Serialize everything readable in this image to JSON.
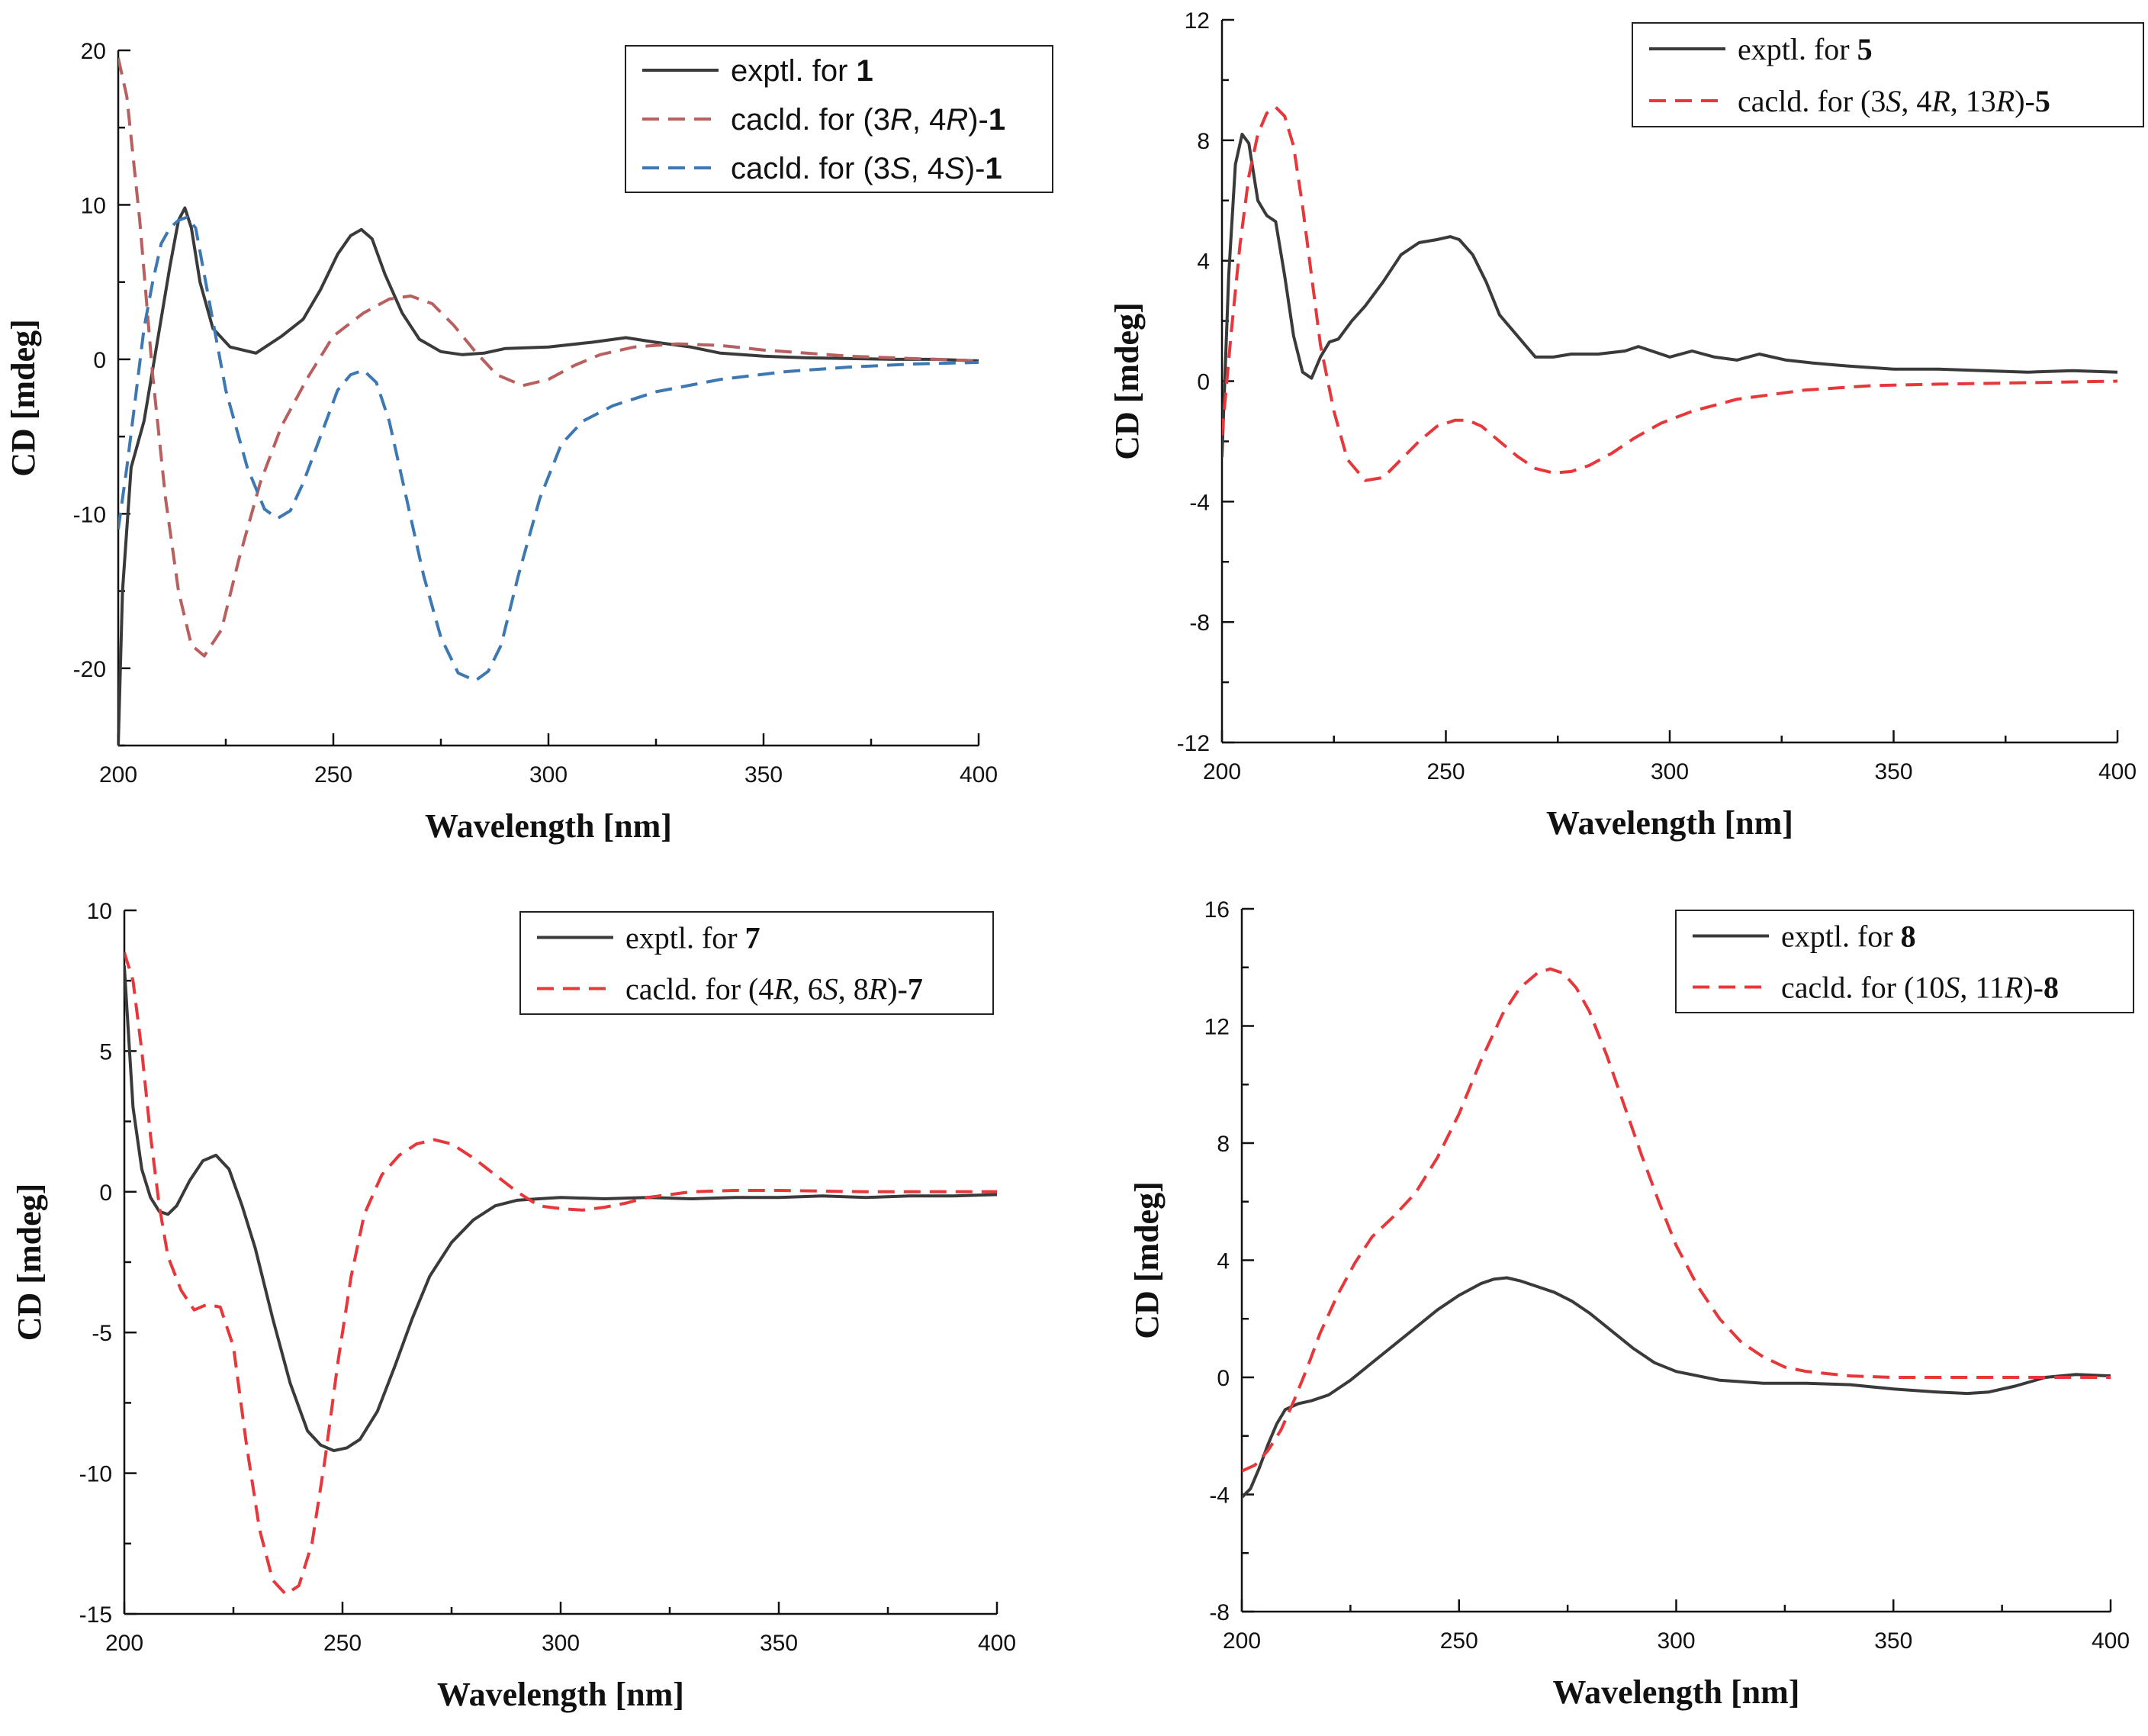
{
  "chart_data": [
    {
      "type": "line",
      "xlabel": "Wavelength [nm]",
      "ylabel": "CD [mdeg]",
      "xlim": [
        200,
        400
      ],
      "ylim": [
        -25,
        20
      ],
      "xticks": [
        "200",
        "250",
        "300",
        "350",
        "400"
      ],
      "yticks": [
        "20",
        "10",
        "0",
        "-10",
        "-20"
      ],
      "yticks_values": [
        20,
        10,
        0,
        -10,
        -20
      ],
      "legend_position": "top-right",
      "legend_font": "sans",
      "series": [
        {
          "name": "exptl. for 1",
          "legend": [
            {
              "t": "exptl. for "
            },
            {
              "t": "1",
              "b": true
            }
          ],
          "color": "#3a3a3a",
          "dash": false,
          "x": [
            200,
            201,
            203,
            206,
            209,
            212,
            214,
            215.5,
            217,
            219,
            222,
            226,
            232,
            238,
            243,
            247,
            251,
            254,
            256.5,
            259,
            262,
            266,
            270,
            275,
            280,
            285,
            290,
            300,
            310,
            318,
            325,
            333,
            340,
            350,
            360,
            370,
            380,
            390,
            400
          ],
          "y": [
            -25,
            -15,
            -7,
            -4,
            1,
            6,
            9,
            9.8,
            8.5,
            5,
            2,
            0.8,
            0.4,
            1.5,
            2.6,
            4.5,
            6.8,
            8,
            8.4,
            7.8,
            5.5,
            3,
            1.3,
            0.5,
            0.3,
            0.4,
            0.7,
            0.8,
            1.1,
            1.4,
            1.1,
            0.8,
            0.4,
            0.2,
            0.1,
            0.05,
            0,
            0,
            -0.1
          ]
        },
        {
          "name": "cacld. for (3R, 4R)-1",
          "legend": [
            {
              "t": "cacld. for ("
            },
            {
              "t": "3"
            },
            {
              "t": "R",
              "i": true
            },
            {
              "t": ", 4"
            },
            {
              "t": "R",
              "i": true
            },
            {
              "t": ")-"
            },
            {
              "t": "1",
              "b": true
            }
          ],
          "color": "#b86060",
          "dash": true,
          "x": [
            200,
            202,
            205,
            208,
            211,
            214,
            217,
            220,
            224,
            228,
            233,
            238,
            244,
            250,
            257,
            263,
            268,
            273,
            278,
            283,
            288,
            294,
            300,
            306,
            312,
            320,
            330,
            340,
            350,
            360,
            370,
            380,
            390,
            400
          ],
          "y": [
            19.5,
            17,
            9,
            -1,
            -9,
            -15,
            -18.5,
            -19.2,
            -17.5,
            -13,
            -8,
            -4.3,
            -1.2,
            1.5,
            3,
            3.9,
            4.1,
            3.6,
            2.2,
            0.5,
            -1,
            -1.7,
            -1.3,
            -0.4,
            0.3,
            0.8,
            1,
            0.9,
            0.6,
            0.4,
            0.2,
            0.1,
            0,
            -0.1
          ]
        },
        {
          "name": "cacld. for (3S, 4S)-1",
          "legend": [
            {
              "t": "cacld. for ("
            },
            {
              "t": "3"
            },
            {
              "t": "S",
              "i": true
            },
            {
              "t": ", 4"
            },
            {
              "t": "S",
              "i": true
            },
            {
              "t": ")-"
            },
            {
              "t": "1",
              "b": true
            }
          ],
          "color": "#3d78b3",
          "dash": true,
          "x": [
            200,
            202,
            204,
            206,
            208,
            210,
            212,
            214,
            216,
            218,
            221,
            225,
            230,
            234,
            237,
            240,
            243,
            247,
            251,
            254,
            257,
            260,
            263,
            267,
            271,
            275,
            279,
            283,
            286,
            289,
            293,
            298,
            303,
            308,
            315,
            325,
            340,
            355,
            370,
            385,
            400
          ],
          "y": [
            -11,
            -7,
            -2.5,
            2,
            5,
            7.5,
            8.5,
            9,
            9.2,
            8.5,
            4,
            -2,
            -7,
            -9.7,
            -10.3,
            -9.8,
            -8,
            -5,
            -2,
            -1,
            -0.7,
            -1.5,
            -4,
            -9,
            -14,
            -18,
            -20.3,
            -20.8,
            -20.2,
            -18.5,
            -14,
            -9,
            -5.5,
            -4,
            -3,
            -2.1,
            -1.3,
            -0.8,
            -0.5,
            -0.3,
            -0.2
          ]
        }
      ]
    },
    {
      "type": "line",
      "xlabel": "Wavelength [nm]",
      "ylabel": "CD [mdeg]",
      "xlim": [
        200,
        400
      ],
      "ylim": [
        -12,
        12
      ],
      "xticks": [
        "200",
        "250",
        "300",
        "350",
        "400"
      ],
      "yticks": [
        "12",
        "8",
        "4",
        "0",
        "-4",
        "-8",
        "-12"
      ],
      "yticks_values": [
        12,
        8,
        4,
        0,
        -4,
        -8,
        -12
      ],
      "legend_position": "top-right",
      "legend_font": "serif",
      "series": [
        {
          "name": "exptl. for 5",
          "legend": [
            {
              "t": "exptl. for "
            },
            {
              "t": "5",
              "b": true
            }
          ],
          "color": "#3a3a3a",
          "dash": false,
          "x": [
            200,
            201.5,
            203,
            204.5,
            206,
            208,
            210,
            212,
            214,
            216,
            218,
            220,
            222,
            224,
            226,
            229,
            232,
            236,
            240,
            244,
            248,
            251,
            253,
            256,
            259,
            262,
            266,
            270,
            274,
            278,
            284,
            290,
            293,
            296,
            300,
            305,
            310,
            315,
            320,
            326,
            332,
            340,
            350,
            360,
            370,
            380,
            390,
            400
          ],
          "y": [
            -2.5,
            3.5,
            7.2,
            8.2,
            7.9,
            6,
            5.5,
            5.3,
            3.5,
            1.5,
            0.3,
            0.1,
            0.8,
            1.3,
            1.4,
            2,
            2.5,
            3.3,
            4.2,
            4.6,
            4.7,
            4.8,
            4.7,
            4.2,
            3.3,
            2.2,
            1.5,
            0.8,
            0.8,
            0.9,
            0.9,
            1,
            1.15,
            1,
            0.8,
            1,
            0.8,
            0.7,
            0.9,
            0.7,
            0.6,
            0.5,
            0.4,
            0.4,
            0.35,
            0.3,
            0.35,
            0.3
          ]
        },
        {
          "name": "cacld. for (3S, 4R, 13R)-5",
          "legend": [
            {
              "t": "cacld. for (3"
            },
            {
              "t": "S",
              "i": true
            },
            {
              "t": ", 4"
            },
            {
              "t": "R",
              "i": true
            },
            {
              "t": ", 13"
            },
            {
              "t": "R",
              "i": true
            },
            {
              "t": ")-"
            },
            {
              "t": "5",
              "b": true
            }
          ],
          "color": "#e8373b",
          "dash": true,
          "x": [
            200,
            202,
            204,
            206,
            208,
            210,
            212,
            214,
            216,
            218,
            220,
            222,
            225,
            228,
            232,
            236,
            240,
            244,
            248,
            252,
            255,
            258,
            262,
            266,
            270,
            274,
            278,
            282,
            287,
            292,
            298,
            305,
            315,
            330,
            345,
            360,
            380,
            400
          ],
          "y": [
            -1.8,
            1.5,
            4.5,
            6.8,
            8.2,
            8.9,
            9.1,
            8.8,
            7.8,
            5.8,
            3.5,
            1.2,
            -1,
            -2.6,
            -3.3,
            -3.2,
            -2.6,
            -2,
            -1.5,
            -1.3,
            -1.3,
            -1.5,
            -2,
            -2.5,
            -2.9,
            -3.05,
            -3,
            -2.8,
            -2.4,
            -1.9,
            -1.4,
            -1,
            -0.6,
            -0.3,
            -0.15,
            -0.1,
            -0.05,
            0
          ]
        }
      ]
    },
    {
      "type": "line",
      "xlabel": "Wavelength [nm]",
      "ylabel": "CD [mdeg]",
      "xlim": [
        200,
        400
      ],
      "ylim": [
        -15,
        10
      ],
      "xticks": [
        "200",
        "250",
        "300",
        "350",
        "400"
      ],
      "yticks": [
        "10",
        "5",
        "0",
        "-5",
        "-10",
        "-15"
      ],
      "yticks_values": [
        10,
        5,
        0,
        -5,
        -10,
        -15
      ],
      "legend_position": "top-right",
      "legend_font": "serif",
      "series": [
        {
          "name": "exptl. for 7",
          "legend": [
            {
              "t": "exptl. for "
            },
            {
              "t": "7",
              "b": true
            }
          ],
          "color": "#3a3a3a",
          "dash": false,
          "x": [
            200,
            202,
            204,
            206,
            208,
            210,
            212,
            215,
            218,
            221,
            224,
            227,
            230,
            234,
            238,
            242,
            245,
            248,
            251,
            254,
            258,
            262,
            266,
            270,
            275,
            280,
            285,
            290,
            295,
            300,
            310,
            320,
            330,
            340,
            350,
            360,
            370,
            380,
            390,
            400
          ],
          "y": [
            8,
            3,
            0.8,
            -0.2,
            -0.7,
            -0.8,
            -0.5,
            0.4,
            1.1,
            1.3,
            0.8,
            -0.5,
            -2,
            -4.5,
            -6.8,
            -8.5,
            -9,
            -9.2,
            -9.1,
            -8.8,
            -7.8,
            -6.2,
            -4.5,
            -3,
            -1.8,
            -1,
            -0.5,
            -0.3,
            -0.25,
            -0.2,
            -0.25,
            -0.2,
            -0.25,
            -0.2,
            -0.2,
            -0.15,
            -0.2,
            -0.15,
            -0.15,
            -0.1
          ]
        },
        {
          "name": "cacld. for (4R, 6S, 8R)-7",
          "legend": [
            {
              "t": "cacld. for ("
            },
            {
              "t": "4"
            },
            {
              "t": "R",
              "i": true
            },
            {
              "t": ", 6"
            },
            {
              "t": "S",
              "i": true
            },
            {
              "t": ", 8"
            },
            {
              "t": "R",
              "i": true
            },
            {
              "t": ")-"
            },
            {
              "t": "7",
              "b": true
            }
          ],
          "color": "#e8373b",
          "dash": true,
          "x": [
            200,
            202,
            204,
            206,
            208,
            210,
            213,
            216,
            219,
            222,
            225,
            228,
            231,
            234,
            237,
            240,
            243,
            246,
            249,
            252,
            255,
            259,
            263,
            267,
            271,
            275,
            280,
            285,
            290,
            295,
            300,
            305,
            310,
            315,
            320,
            330,
            340,
            350,
            370,
            400
          ],
          "y": [
            8.5,
            7.5,
            5,
            2,
            -0.5,
            -2.3,
            -3.5,
            -4.2,
            -4,
            -4.1,
            -5.5,
            -9,
            -12,
            -13.8,
            -14.3,
            -14,
            -12.5,
            -9.5,
            -6,
            -3,
            -0.8,
            0.6,
            1.3,
            1.7,
            1.85,
            1.7,
            1.2,
            0.6,
            0,
            -0.5,
            -0.6,
            -0.65,
            -0.55,
            -0.4,
            -0.2,
            0,
            0.05,
            0.05,
            0,
            0
          ]
        }
      ]
    },
    {
      "type": "line",
      "xlabel": "Wavelength [nm]",
      "ylabel": "CD [mdeg]",
      "xlim": [
        200,
        400
      ],
      "ylim": [
        -8,
        16
      ],
      "xticks": [
        "200",
        "250",
        "300",
        "350",
        "400"
      ],
      "yticks": [
        "16",
        "12",
        "8",
        "4",
        "0",
        "-4",
        "-8"
      ],
      "yticks_values": [
        16,
        12,
        8,
        4,
        0,
        -4,
        -8
      ],
      "legend_position": "top-right",
      "legend_font": "serif",
      "series": [
        {
          "name": "exptl. for 8",
          "legend": [
            {
              "t": "exptl. for "
            },
            {
              "t": "8",
              "b": true
            }
          ],
          "color": "#3a3a3a",
          "dash": false,
          "x": [
            200,
            202,
            204,
            206,
            208,
            210,
            213,
            216,
            220,
            225,
            230,
            235,
            240,
            245,
            250,
            255,
            258,
            261,
            264,
            268,
            272,
            276,
            280,
            285,
            290,
            295,
            300,
            305,
            310,
            320,
            330,
            340,
            350,
            360,
            367,
            372,
            378,
            385,
            392,
            400
          ],
          "y": [
            -4.1,
            -3.8,
            -3.1,
            -2.3,
            -1.6,
            -1.1,
            -0.9,
            -0.8,
            -0.6,
            -0.1,
            0.5,
            1.1,
            1.7,
            2.3,
            2.8,
            3.2,
            3.35,
            3.4,
            3.3,
            3.1,
            2.9,
            2.6,
            2.2,
            1.6,
            1,
            0.5,
            0.2,
            0.05,
            -0.1,
            -0.2,
            -0.2,
            -0.25,
            -0.4,
            -0.5,
            -0.55,
            -0.5,
            -0.3,
            0,
            0.1,
            0.05
          ]
        },
        {
          "name": "cacld. for (10S, 11R)-8",
          "legend": [
            {
              "t": "cacld. for (10"
            },
            {
              "t": "S",
              "i": true
            },
            {
              "t": ", 11"
            },
            {
              "t": "R",
              "i": true
            },
            {
              "t": ")-"
            },
            {
              "t": "8",
              "b": true
            }
          ],
          "color": "#e8373b",
          "dash": true,
          "x": [
            200,
            203,
            206,
            209,
            212,
            215,
            218,
            222,
            226,
            230,
            235,
            240,
            245,
            250,
            255,
            260,
            264,
            268,
            271,
            274,
            277,
            280,
            284,
            288,
            292,
            296,
            300,
            305,
            310,
            315,
            320,
            325,
            330,
            340,
            350,
            360,
            370,
            380,
            390,
            400
          ],
          "y": [
            -3.2,
            -3,
            -2.5,
            -1.8,
            -0.8,
            0.3,
            1.5,
            2.8,
            3.9,
            4.8,
            5.5,
            6.3,
            7.5,
            9,
            10.8,
            12.4,
            13.3,
            13.8,
            13.95,
            13.8,
            13.3,
            12.5,
            11,
            9.3,
            7.6,
            6,
            4.5,
            3.1,
            2,
            1.2,
            0.7,
            0.35,
            0.2,
            0.05,
            0,
            0,
            0,
            0,
            0,
            0
          ]
        }
      ]
    }
  ]
}
